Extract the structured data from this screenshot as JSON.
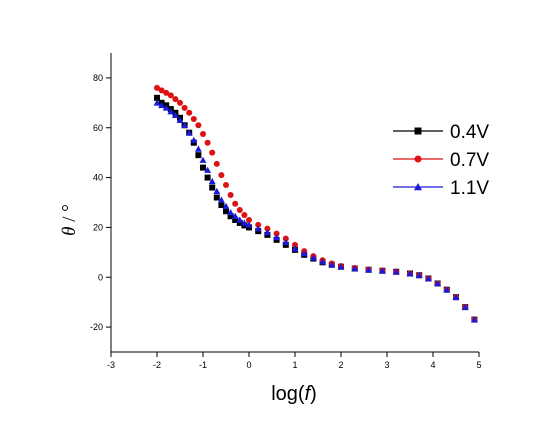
{
  "chart_data": {
    "type": "scatter",
    "xlabel": {
      "prefix": "log(",
      "var": "f",
      "suffix": ")"
    },
    "ylabel": {
      "var": "θ",
      "suffix": " / °"
    },
    "xlim": [
      -3,
      5
    ],
    "ylim": [
      -30,
      90
    ],
    "xticks": [
      -3,
      -2,
      -1,
      0,
      1,
      2,
      3,
      4,
      5
    ],
    "yticks": [
      -20,
      0,
      20,
      40,
      60,
      80
    ],
    "grid": false,
    "legend_position": "top-right",
    "series": [
      {
        "name": "0.4V",
        "color": "#000000",
        "marker": "square",
        "points": [
          [
            -2.0,
            72
          ],
          [
            -1.9,
            70
          ],
          [
            -1.8,
            69
          ],
          [
            -1.7,
            67.5
          ],
          [
            -1.6,
            66
          ],
          [
            -1.5,
            64
          ],
          [
            -1.4,
            61
          ],
          [
            -1.3,
            58
          ],
          [
            -1.2,
            54
          ],
          [
            -1.1,
            49
          ],
          [
            -1.0,
            44
          ],
          [
            -0.9,
            40
          ],
          [
            -0.8,
            36
          ],
          [
            -0.7,
            32
          ],
          [
            -0.6,
            29
          ],
          [
            -0.5,
            26.5
          ],
          [
            -0.4,
            24.5
          ],
          [
            -0.3,
            23
          ],
          [
            -0.2,
            21.8
          ],
          [
            -0.1,
            20.8
          ],
          [
            0.0,
            20
          ],
          [
            0.2,
            18.5
          ],
          [
            0.4,
            17
          ],
          [
            0.6,
            15
          ],
          [
            0.8,
            13
          ],
          [
            1.0,
            11
          ],
          [
            1.2,
            9
          ],
          [
            1.4,
            7.5
          ],
          [
            1.6,
            6
          ],
          [
            1.8,
            5
          ],
          [
            2.0,
            4.2
          ],
          [
            2.3,
            3.5
          ],
          [
            2.6,
            3
          ],
          [
            2.9,
            2.6
          ],
          [
            3.2,
            2.2
          ],
          [
            3.5,
            1.5
          ],
          [
            3.7,
            0.8
          ],
          [
            3.9,
            -0.5
          ],
          [
            4.1,
            -2.5
          ],
          [
            4.3,
            -5
          ],
          [
            4.5,
            -8
          ],
          [
            4.7,
            -12
          ],
          [
            4.9,
            -17
          ]
        ]
      },
      {
        "name": "0.7V",
        "color": "#dd1111",
        "marker": "circle",
        "points": [
          [
            -2.0,
            76
          ],
          [
            -1.9,
            75
          ],
          [
            -1.8,
            74
          ],
          [
            -1.7,
            73
          ],
          [
            -1.6,
            71.5
          ],
          [
            -1.5,
            70
          ],
          [
            -1.4,
            68
          ],
          [
            -1.3,
            66
          ],
          [
            -1.2,
            63.5
          ],
          [
            -1.1,
            61
          ],
          [
            -1.0,
            57.5
          ],
          [
            -0.9,
            54
          ],
          [
            -0.8,
            50
          ],
          [
            -0.7,
            45.5
          ],
          [
            -0.6,
            41
          ],
          [
            -0.5,
            37
          ],
          [
            -0.4,
            33
          ],
          [
            -0.3,
            29.5
          ],
          [
            -0.2,
            27
          ],
          [
            -0.1,
            25
          ],
          [
            0.0,
            23
          ],
          [
            0.2,
            21
          ],
          [
            0.4,
            19.5
          ],
          [
            0.6,
            17.5
          ],
          [
            0.8,
            15.5
          ],
          [
            1.0,
            13
          ],
          [
            1.2,
            10.5
          ],
          [
            1.4,
            8.5
          ],
          [
            1.6,
            6.8
          ],
          [
            1.8,
            5.5
          ],
          [
            2.0,
            4.5
          ],
          [
            2.3,
            3.7
          ],
          [
            2.6,
            3.1
          ],
          [
            2.9,
            2.7
          ],
          [
            3.2,
            2.2
          ],
          [
            3.5,
            1.5
          ],
          [
            3.7,
            0.8
          ],
          [
            3.9,
            -0.5
          ],
          [
            4.1,
            -2.5
          ],
          [
            4.3,
            -5
          ],
          [
            4.5,
            -8
          ],
          [
            4.7,
            -12
          ],
          [
            4.9,
            -17
          ]
        ]
      },
      {
        "name": "1.1V",
        "color": "#1a1adf",
        "marker": "triangle",
        "points": [
          [
            -2.0,
            70
          ],
          [
            -1.9,
            69
          ],
          [
            -1.8,
            68
          ],
          [
            -1.7,
            66.5
          ],
          [
            -1.6,
            65
          ],
          [
            -1.5,
            63
          ],
          [
            -1.4,
            61
          ],
          [
            -1.3,
            58
          ],
          [
            -1.2,
            55
          ],
          [
            -1.1,
            51.5
          ],
          [
            -1.0,
            47
          ],
          [
            -0.9,
            43
          ],
          [
            -0.8,
            38.5
          ],
          [
            -0.7,
            34.5
          ],
          [
            -0.6,
            31
          ],
          [
            -0.5,
            28.5
          ],
          [
            -0.4,
            26
          ],
          [
            -0.3,
            24.5
          ],
          [
            -0.2,
            23
          ],
          [
            -0.1,
            21.8
          ],
          [
            0.0,
            21
          ],
          [
            0.2,
            19.5
          ],
          [
            0.4,
            18
          ],
          [
            0.6,
            16
          ],
          [
            0.8,
            14
          ],
          [
            1.0,
            11.5
          ],
          [
            1.2,
            9.5
          ],
          [
            1.4,
            7.8
          ],
          [
            1.6,
            6.2
          ],
          [
            1.8,
            5
          ],
          [
            2.0,
            4.2
          ],
          [
            2.3,
            3.5
          ],
          [
            2.6,
            3
          ],
          [
            2.9,
            2.6
          ],
          [
            3.2,
            2.2
          ],
          [
            3.5,
            1.5
          ],
          [
            3.7,
            0.8
          ],
          [
            3.9,
            -0.5
          ],
          [
            4.1,
            -2.5
          ],
          [
            4.3,
            -5
          ],
          [
            4.5,
            -8
          ],
          [
            4.7,
            -12
          ],
          [
            4.9,
            -17
          ]
        ]
      }
    ]
  }
}
